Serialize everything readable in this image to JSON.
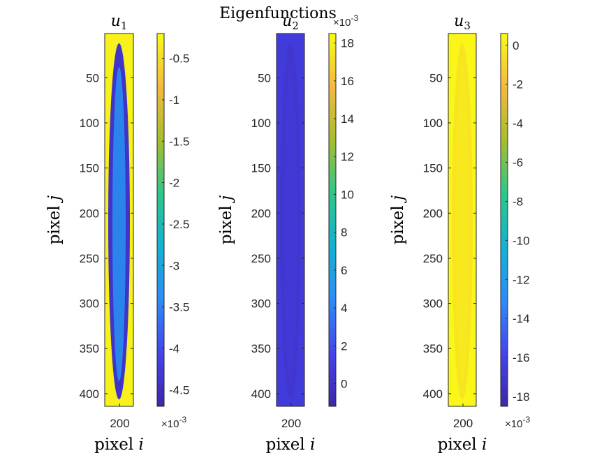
{
  "figure": {
    "suptitle": "Eigenfunctions"
  },
  "colormap": [
    "#3e26a8",
    "#4444f0",
    "#2d8cf8",
    "#12b2d2",
    "#2ec68a",
    "#a6be2e",
    "#f5b93d",
    "#f9fb15"
  ],
  "chart_data": [
    {
      "type": "heatmap",
      "title": "u",
      "title_sub": "1",
      "xlabel": "pixel",
      "xlabel_var": "i",
      "ylabel": "pixel",
      "ylabel_var": "j",
      "xticks": [
        200
      ],
      "yticks": [
        50,
        100,
        150,
        200,
        250,
        300,
        350,
        400
      ],
      "ylim": [
        1,
        414
      ],
      "colorbar": {
        "range": [
          -4.7,
          -0.2
        ],
        "ticks": [
          -0.5,
          -1,
          -1.5,
          -2,
          -2.5,
          -3,
          -3.5,
          -4,
          -4.5
        ],
        "tick_labels": [
          "-0.5",
          "-1",
          "-1.5",
          "-2",
          "-2.5",
          "-3",
          "-3.5",
          "-4",
          "-4.5"
        ],
        "exponent": "-3",
        "exponent_position": "bottom"
      },
      "background_value": -0.3,
      "ellipse_value": -4.4,
      "core_value": -3.3
    },
    {
      "type": "heatmap",
      "title": "u",
      "title_sub": "2",
      "xlabel": "pixel",
      "xlabel_var": "i",
      "ylabel": "pixel",
      "ylabel_var": "j",
      "xticks": [
        200
      ],
      "yticks": [
        50,
        100,
        150,
        200,
        250,
        300,
        350,
        400
      ],
      "ylim": [
        1,
        414
      ],
      "colorbar": {
        "range": [
          -1.2,
          18.5
        ],
        "ticks": [
          18,
          16,
          14,
          12,
          10,
          8,
          6,
          4,
          2,
          0
        ],
        "tick_labels": [
          "18",
          "16",
          "14",
          "12",
          "10",
          "8",
          "6",
          "4",
          "2",
          "0"
        ],
        "exponent": "-3",
        "exponent_position": "top"
      },
      "background_value": 0.8,
      "ellipse_value": 0.3,
      "core_value": 0.6
    },
    {
      "type": "heatmap",
      "title": "u",
      "title_sub": "3",
      "xlabel": "pixel",
      "xlabel_var": "i",
      "ylabel": "pixel",
      "ylabel_var": "j",
      "xticks": [
        200
      ],
      "yticks": [
        50,
        100,
        150,
        200,
        250,
        300,
        350,
        400
      ],
      "ylim": [
        1,
        414
      ],
      "colorbar": {
        "range": [
          -18.5,
          0.6
        ],
        "ticks": [
          0,
          -2,
          -4,
          -6,
          -8,
          -10,
          -12,
          -14,
          -16,
          -18
        ],
        "tick_labels": [
          "0",
          "-2",
          "-4",
          "-6",
          "-8",
          "-10",
          "-12",
          "-14",
          "-16",
          "-18"
        ],
        "exponent": "-3",
        "exponent_position": "bottom"
      },
      "background_value": 0.4,
      "ellipse_value": -0.3,
      "core_value": -0.1
    }
  ]
}
